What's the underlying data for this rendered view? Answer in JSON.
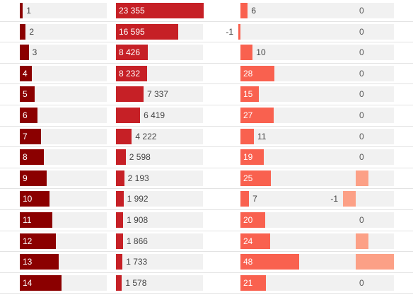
{
  "colors": {
    "rank": "#8b0000",
    "cases": "#c62026",
    "change": "#f9614f",
    "change2": "#fca086",
    "track": "#f1f1f1",
    "divider": "#e3e3e3"
  },
  "chart_data": {
    "type": "table",
    "columns": [
      {
        "key": "rank",
        "title": ""
      },
      {
        "key": "value",
        "title": ""
      },
      {
        "key": "delta_a",
        "title": ""
      },
      {
        "key": "delta_b",
        "title": ""
      }
    ],
    "rows": [
      {
        "rank": 1,
        "value": 23355,
        "value_label": "23 355",
        "delta_a": 6,
        "delta_b": 0
      },
      {
        "rank": 2,
        "value": 16595,
        "value_label": "16 595",
        "delta_a": -1,
        "delta_b": 0
      },
      {
        "rank": 3,
        "value": 8426,
        "value_label": "8 426",
        "delta_a": 10,
        "delta_b": 0
      },
      {
        "rank": 4,
        "value": 8232,
        "value_label": "8 232",
        "delta_a": 28,
        "delta_b": 0
      },
      {
        "rank": 5,
        "value": 7337,
        "value_label": "7 337",
        "delta_a": 15,
        "delta_b": 0
      },
      {
        "rank": 6,
        "value": 6419,
        "value_label": "6 419",
        "delta_a": 27,
        "delta_b": 0
      },
      {
        "rank": 7,
        "value": 4222,
        "value_label": "4 222",
        "delta_a": 11,
        "delta_b": 0
      },
      {
        "rank": 8,
        "value": 2598,
        "value_label": "2 598",
        "delta_a": 19,
        "delta_b": 0
      },
      {
        "rank": 9,
        "value": 2193,
        "value_label": "2 193",
        "delta_a": 25,
        "delta_b": 1
      },
      {
        "rank": 10,
        "value": 1992,
        "value_label": "1 992",
        "delta_a": 7,
        "delta_b": -1
      },
      {
        "rank": 11,
        "value": 1908,
        "value_label": "1 908",
        "delta_a": 20,
        "delta_b": 0
      },
      {
        "rank": 12,
        "value": 1866,
        "value_label": "1 866",
        "delta_a": 24,
        "delta_b": 1
      },
      {
        "rank": 13,
        "value": 1733,
        "value_label": "1 733",
        "delta_a": 48,
        "delta_b": 3
      },
      {
        "rank": 14,
        "value": 1578,
        "value_label": "1 578",
        "delta_a": 21,
        "delta_b": 0
      }
    ],
    "scales": {
      "rank_max": 14,
      "value_max": 23355,
      "delta_a_max": 48,
      "delta_b_max": 3
    }
  }
}
